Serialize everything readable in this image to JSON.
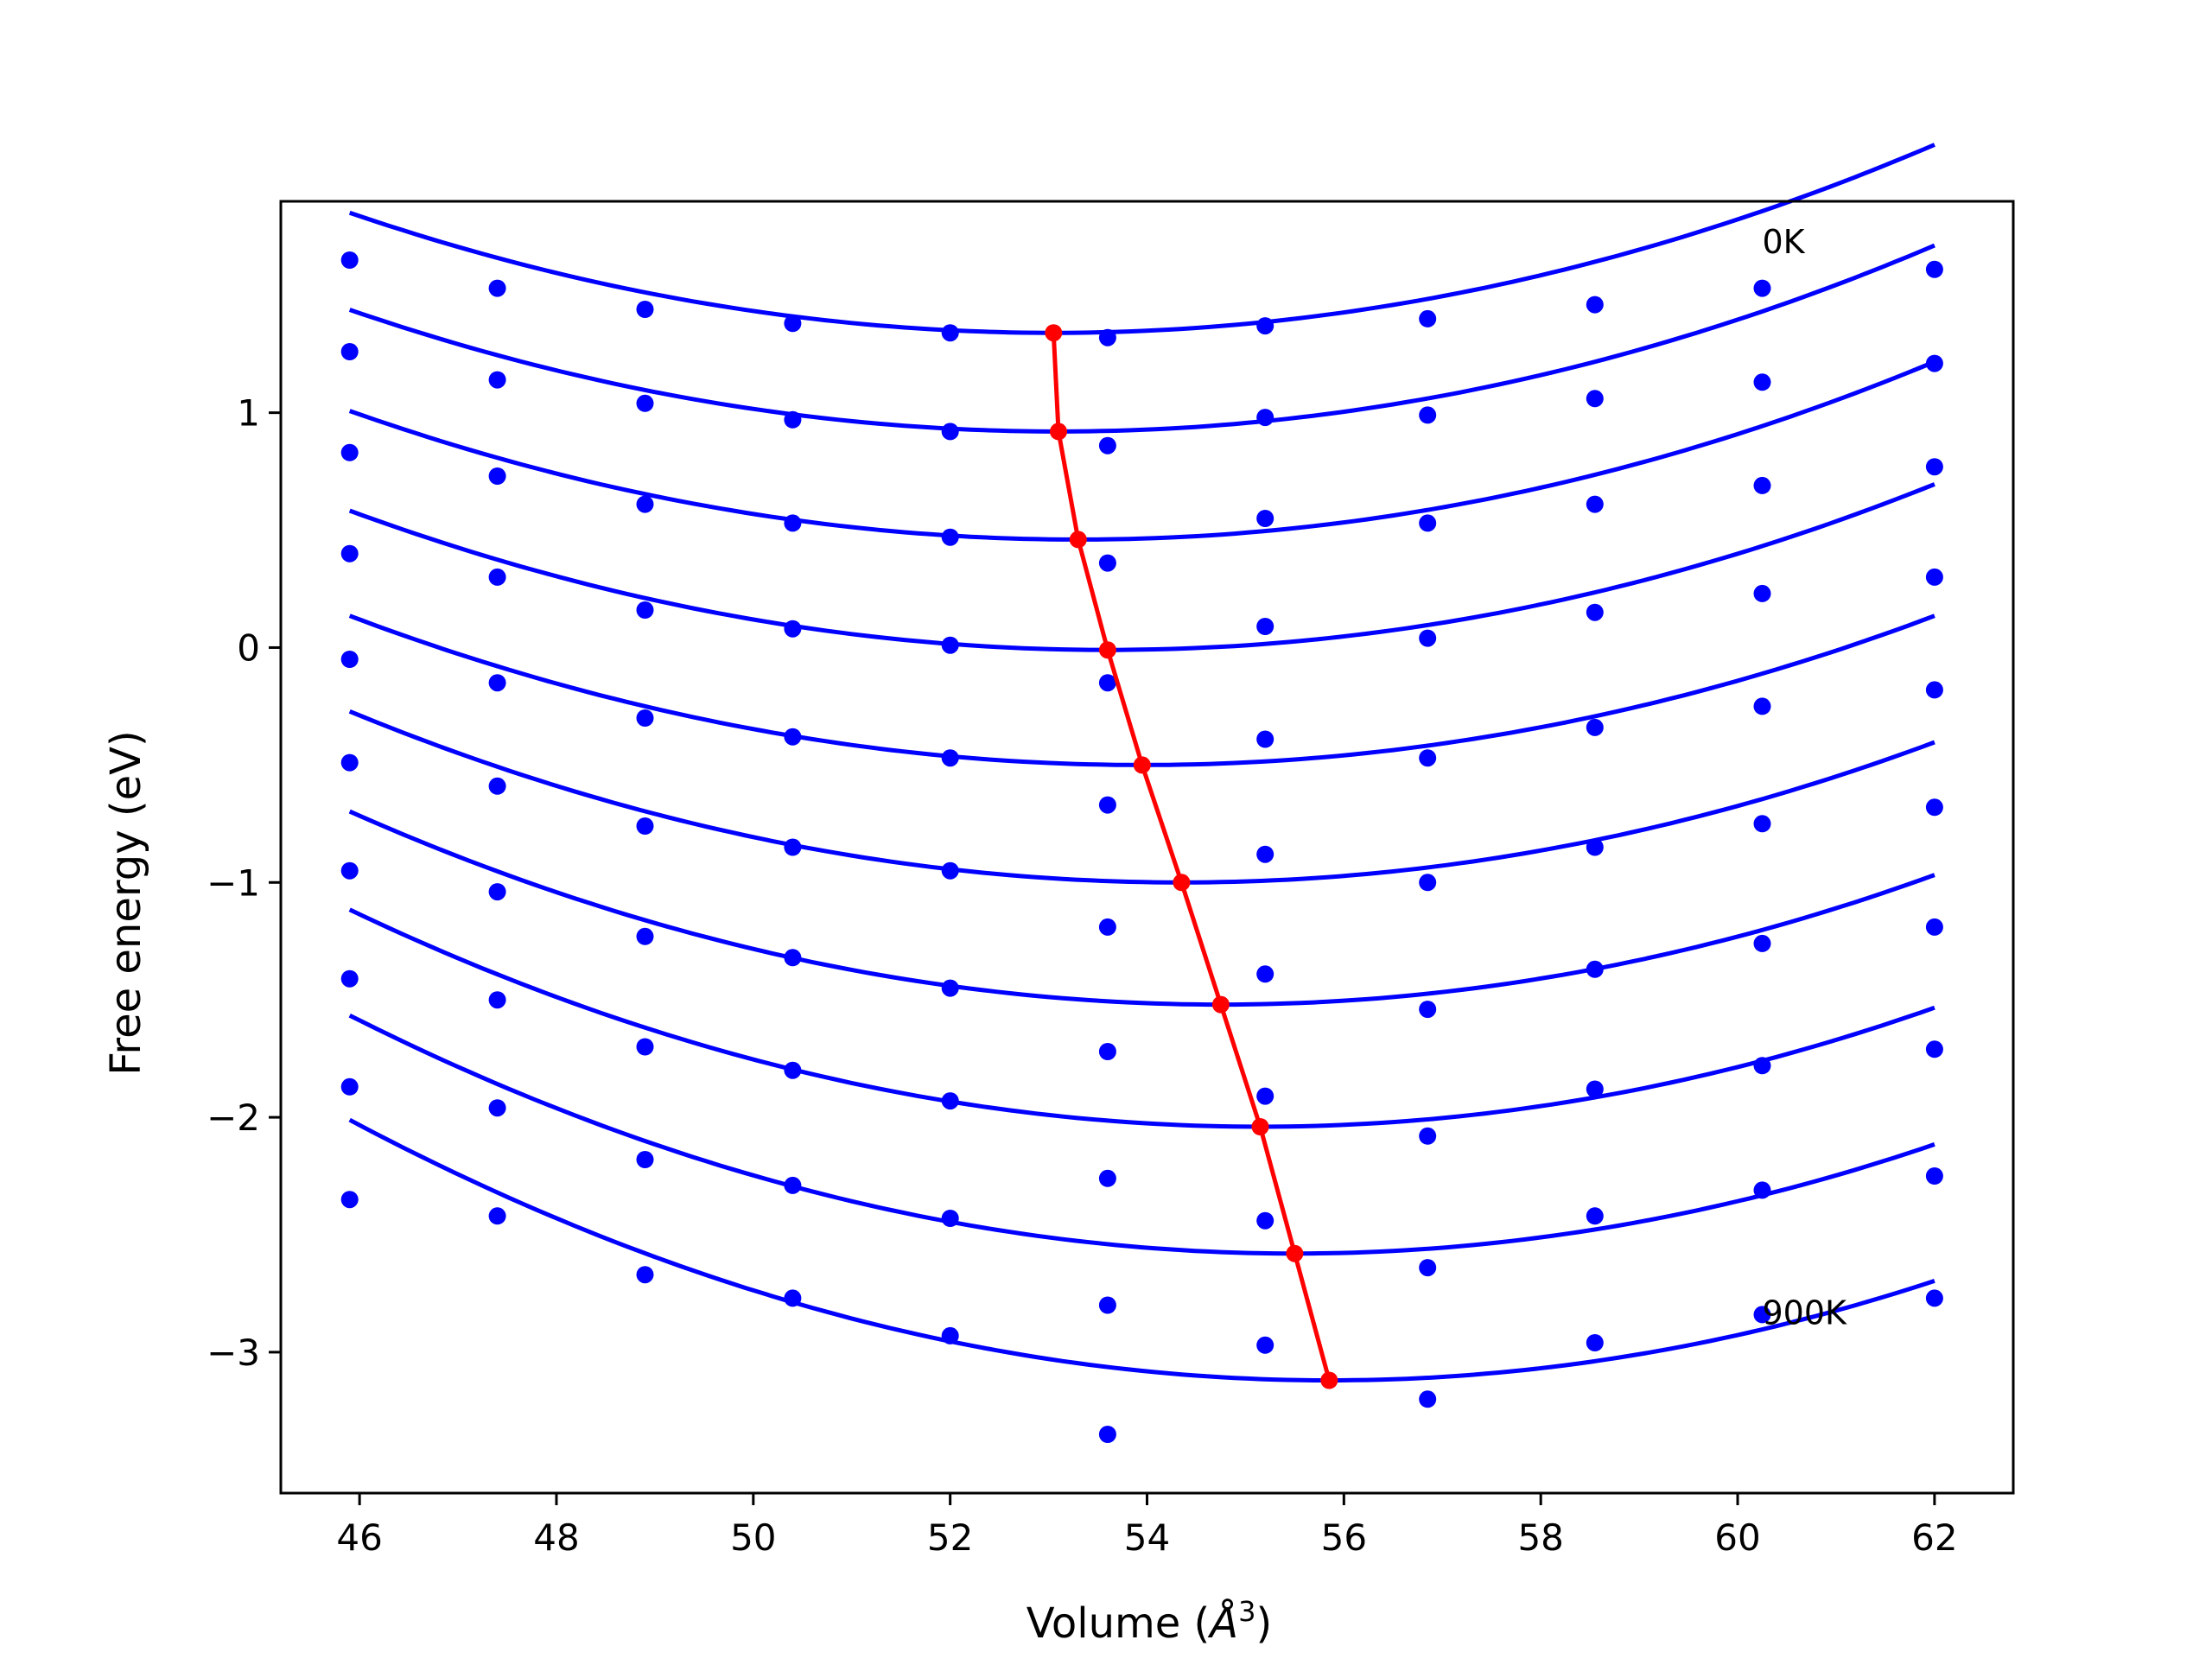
{
  "chart_data": {
    "type": "scatter",
    "xlabel": "Volume (Å³)",
    "xlabel_main": "Volume (",
    "xlabel_unit": "Å",
    "xlabel_exp": "3",
    "xlabel_close": ")",
    "ylabel": "Free energy (eV)",
    "xlim": [
      45.2,
      62.8
    ],
    "ylim": [
      -3.6,
      1.9
    ],
    "xticks": [
      46,
      48,
      50,
      52,
      54,
      56,
      58,
      60,
      62
    ],
    "yticks": [
      -3,
      -2,
      -1,
      0,
      1
    ],
    "ytick_labels": [
      "−3",
      "−2",
      "−1",
      "0",
      "1"
    ],
    "annotations": [
      {
        "text": "0K",
        "x": 60.25,
        "y": 1.68
      },
      {
        "text": "900K",
        "x": 60.25,
        "y": -2.88
      }
    ],
    "grid": false,
    "points_color": "#0000ff",
    "fit_color": "#0000ff",
    "min_color": "#ff0000",
    "x_points": [
      45.9,
      47.4,
      48.9,
      50.4,
      52.0,
      53.6,
      55.2,
      56.85,
      58.55,
      60.25,
      62.0
    ],
    "series": [
      {
        "y": [
          1.65,
          1.53,
          1.44,
          1.38,
          1.34,
          1.32,
          1.37,
          1.4,
          1.46,
          1.53,
          1.61
        ],
        "fit": {
          "a": 0.01,
          "xmin": 53.05,
          "ymin": 1.34
        }
      },
      {
        "y": [
          1.26,
          1.14,
          1.04,
          0.97,
          0.92,
          0.86,
          0.98,
          0.99,
          1.06,
          1.13,
          1.21
        ],
        "fit": {
          "a": 0.01,
          "xmin": 53.1,
          "ymin": 0.92
        }
      },
      {
        "y": [
          0.83,
          0.73,
          0.61,
          0.53,
          0.47,
          0.36,
          0.55,
          0.53,
          0.61,
          0.69,
          0.77
        ],
        "fit": {
          "a": 0.01,
          "xmin": 53.3,
          "ymin": 0.46
        }
      },
      {
        "y": [
          0.4,
          0.3,
          0.16,
          0.08,
          0.01,
          -0.15,
          0.09,
          0.04,
          0.15,
          0.23,
          0.3
        ],
        "fit": {
          "a": 0.01,
          "xmin": 53.6,
          "ymin": -0.01
        }
      },
      {
        "y": [
          -0.05,
          -0.15,
          -0.3,
          -0.38,
          -0.47,
          -0.67,
          -0.39,
          -0.47,
          -0.34,
          -0.25,
          -0.18
        ],
        "fit": {
          "a": 0.0098,
          "xmin": 53.95,
          "ymin": -0.5
        }
      },
      {
        "y": [
          -0.49,
          -0.59,
          -0.76,
          -0.85,
          -0.95,
          -1.19,
          -0.88,
          -1.0,
          -0.85,
          -0.75,
          -0.68
        ],
        "fit": {
          "a": 0.0102,
          "xmin": 54.35,
          "ymin": -1.0
        }
      },
      {
        "y": [
          -0.95,
          -1.04,
          -1.23,
          -1.32,
          -1.45,
          -1.72,
          -1.39,
          -1.54,
          -1.37,
          -1.26,
          -1.19
        ],
        "fit": {
          "a": 0.0105,
          "xmin": 54.75,
          "ymin": -1.52
        }
      },
      {
        "y": [
          -1.41,
          -1.5,
          -1.7,
          -1.8,
          -1.93,
          -2.26,
          -1.91,
          -2.08,
          -1.88,
          -1.78,
          -1.71
        ],
        "fit": {
          "a": 0.0108,
          "xmin": 55.15,
          "ymin": -2.04
        }
      },
      {
        "y": [
          -1.87,
          -1.96,
          -2.18,
          -2.29,
          -2.43,
          -2.8,
          -2.44,
          -2.64,
          -2.42,
          -2.31,
          -2.25
        ],
        "fit": {
          "a": 0.011,
          "xmin": 55.5,
          "ymin": -2.58
        }
      },
      {
        "y": [
          -2.35,
          -2.42,
          -2.67,
          -2.77,
          -2.93,
          -3.35,
          -2.97,
          -3.2,
          -2.96,
          -2.84,
          -2.77
        ],
        "fit": {
          "a": 0.0112,
          "xmin": 55.85,
          "ymin": -3.12
        }
      }
    ],
    "minima": {
      "x": [
        53.05,
        53.1,
        53.3,
        53.6,
        53.95,
        54.35,
        54.75,
        55.15,
        55.5,
        55.85
      ],
      "y": [
        1.34,
        0.92,
        0.46,
        -0.01,
        -0.5,
        -1.0,
        -1.52,
        -2.04,
        -2.58,
        -3.12
      ]
    }
  }
}
